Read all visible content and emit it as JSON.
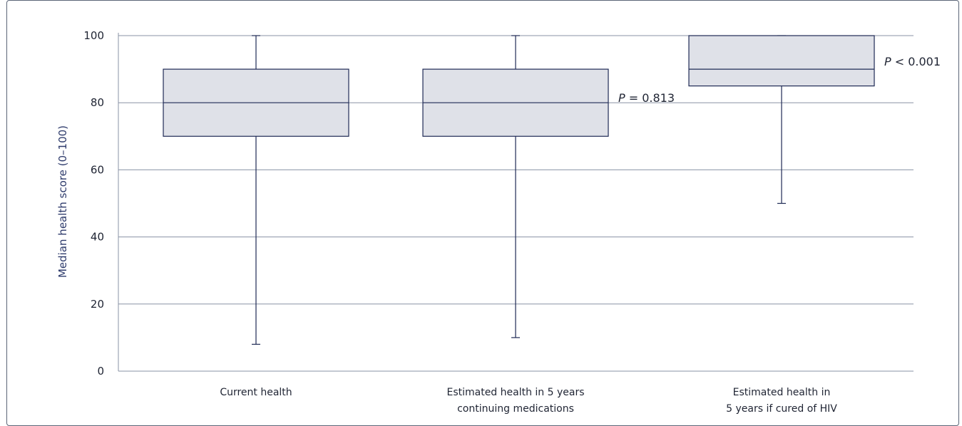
{
  "chart_data": {
    "type": "box",
    "ylabel": "Median health score (0–100)",
    "ylim": [
      0,
      100
    ],
    "yticks": [
      0,
      20,
      40,
      60,
      80,
      100
    ],
    "grid": true,
    "categories": [
      [
        "Current health"
      ],
      [
        "Estimated health in 5 years",
        "continuing medications"
      ],
      [
        "Estimated health in",
        "5 years if cured of HIV"
      ]
    ],
    "boxes": [
      {
        "min": 8,
        "q1": 70,
        "median": 80,
        "q3": 90,
        "max": 100,
        "p_value": null
      },
      {
        "min": 10,
        "q1": 70,
        "median": 80,
        "q3": 90,
        "max": 100,
        "p_value": {
          "symbol": "P",
          "text": " = 0.813"
        }
      },
      {
        "min": 50,
        "q1": 85,
        "median": 90,
        "q3": 100,
        "max": 100,
        "p_value": {
          "symbol": "P",
          "text": " < 0.001"
        }
      }
    ],
    "colors": {
      "box_fill": "#dfe1e8",
      "box_stroke": "#1f2a55",
      "grid": "#8a93a6"
    }
  }
}
